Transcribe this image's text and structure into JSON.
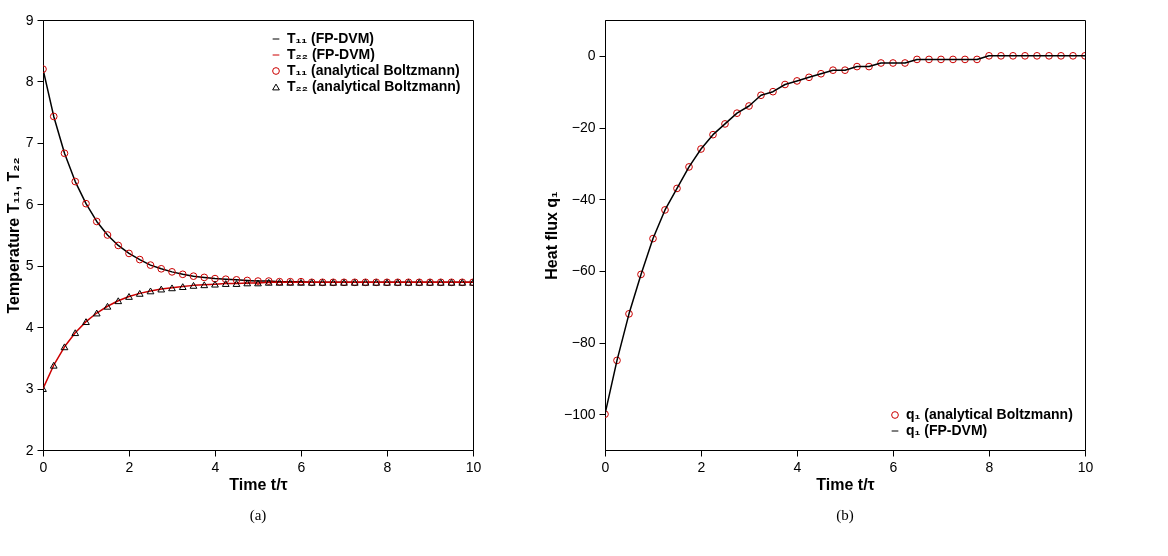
{
  "chart_data": [
    {
      "type": "line",
      "xlabel": "Time t/τ",
      "ylabel": "Temperature T₁₁, T₂₂",
      "xlim": [
        0,
        10
      ],
      "xticks": [
        0,
        2,
        4,
        6,
        8,
        10
      ],
      "ylim": [
        2,
        9
      ],
      "yticks": [
        2,
        3,
        4,
        5,
        6,
        7,
        8,
        9
      ],
      "grid": false,
      "legend": "top right",
      "annotations": [
        "(a)"
      ],
      "x": [
        0,
        0.25,
        0.5,
        0.75,
        1,
        1.25,
        1.5,
        1.75,
        2,
        2.25,
        2.5,
        2.75,
        3,
        3.25,
        3.5,
        3.75,
        4,
        4.25,
        4.5,
        4.75,
        5,
        5.25,
        5.5,
        5.75,
        6,
        6.25,
        6.5,
        6.75,
        7,
        7.25,
        7.5,
        7.75,
        8,
        8.25,
        8.5,
        8.75,
        9,
        9.25,
        9.5,
        9.75,
        10
      ],
      "series": [
        {
          "name": "T₁₁ (FP-DVM)",
          "color": "#000000",
          "line_style": "solid",
          "values": [
            8.2,
            7.43,
            6.83,
            6.37,
            6.01,
            5.72,
            5.5,
            5.33,
            5.2,
            5.1,
            5.01,
            4.95,
            4.9,
            4.86,
            4.83,
            4.81,
            4.79,
            4.78,
            4.77,
            4.76,
            4.75,
            4.75,
            4.74,
            4.74,
            4.74,
            4.73,
            4.73,
            4.73,
            4.73,
            4.73,
            4.73,
            4.73,
            4.73,
            4.73,
            4.73,
            4.73,
            4.73,
            4.73,
            4.73,
            4.73,
            4.73
          ]
        },
        {
          "name": "T₂₂ (FP-DVM)",
          "color": "#cc0000",
          "line_style": "solid",
          "values": [
            3.0,
            3.38,
            3.68,
            3.91,
            4.09,
            4.23,
            4.34,
            4.43,
            4.5,
            4.55,
            4.59,
            4.62,
            4.64,
            4.66,
            4.68,
            4.69,
            4.7,
            4.71,
            4.71,
            4.72,
            4.72,
            4.73,
            4.73,
            4.73,
            4.73,
            4.73,
            4.73,
            4.73,
            4.73,
            4.73,
            4.73,
            4.73,
            4.73,
            4.73,
            4.73,
            4.73,
            4.73,
            4.73,
            4.73,
            4.73,
            4.73
          ]
        },
        {
          "name": "T₁₁ (analytical Boltzmann)",
          "type": "scatter",
          "marker": "circle",
          "color": "#cc0000",
          "values": [
            8.2,
            7.43,
            6.83,
            6.37,
            6.01,
            5.72,
            5.5,
            5.33,
            5.2,
            5.1,
            5.01,
            4.95,
            4.9,
            4.86,
            4.83,
            4.81,
            4.79,
            4.78,
            4.77,
            4.76,
            4.75,
            4.75,
            4.74,
            4.74,
            4.74,
            4.73,
            4.73,
            4.73,
            4.73,
            4.73,
            4.73,
            4.73,
            4.73,
            4.73,
            4.73,
            4.73,
            4.73,
            4.73,
            4.73,
            4.73,
            4.73
          ]
        },
        {
          "name": "T₂₂ (analytical Boltzmann)",
          "type": "scatter",
          "marker": "triangle",
          "color": "#000000",
          "values": [
            3.0,
            3.38,
            3.68,
            3.91,
            4.09,
            4.23,
            4.34,
            4.43,
            4.5,
            4.55,
            4.59,
            4.62,
            4.64,
            4.66,
            4.68,
            4.69,
            4.7,
            4.71,
            4.71,
            4.72,
            4.72,
            4.73,
            4.73,
            4.73,
            4.73,
            4.73,
            4.73,
            4.73,
            4.73,
            4.73,
            4.73,
            4.73,
            4.73,
            4.73,
            4.73,
            4.73,
            4.73,
            4.73,
            4.73,
            4.73,
            4.73
          ]
        }
      ]
    },
    {
      "type": "line",
      "xlabel": "Time t/τ",
      "ylabel": "Heat flux q₁",
      "xlim": [
        0,
        10
      ],
      "xticks": [
        0,
        2,
        4,
        6,
        8,
        10
      ],
      "ylim": [
        -110,
        10
      ],
      "yticks": [
        -100,
        -80,
        -60,
        -40,
        -20,
        0
      ],
      "grid": false,
      "legend": "bottom right",
      "annotations": [
        "(b)"
      ],
      "x": [
        0,
        0.25,
        0.5,
        0.75,
        1,
        1.25,
        1.5,
        1.75,
        2,
        2.25,
        2.5,
        2.75,
        3,
        3.25,
        3.5,
        3.75,
        4,
        4.25,
        4.5,
        4.75,
        5,
        5.25,
        5.5,
        5.75,
        6,
        6.25,
        6.5,
        6.75,
        7,
        7.25,
        7.5,
        7.75,
        8,
        8.25,
        8.5,
        8.75,
        9,
        9.25,
        9.5,
        9.75,
        10
      ],
      "series": [
        {
          "name": "q₁ (analytical Boltzmann)",
          "type": "scatter",
          "marker": "circle",
          "color": "#cc0000",
          "values": [
            -100,
            -85,
            -72,
            -61,
            -51,
            -43,
            -37,
            -31,
            -26,
            -22,
            -19,
            -16,
            -14,
            -11,
            -10,
            -8,
            -7,
            -6,
            -5,
            -4,
            -4,
            -3,
            -3,
            -2,
            -2,
            -2,
            -1,
            -1,
            -1,
            -1,
            -1,
            -1,
            0,
            0,
            0,
            0,
            0,
            0,
            0,
            0,
            0
          ]
        },
        {
          "name": "q₁ (FP-DVM)",
          "color": "#000000",
          "line_style": "solid",
          "values": [
            -100,
            -85,
            -72,
            -61,
            -51,
            -43,
            -37,
            -31,
            -26,
            -22,
            -19,
            -16,
            -14,
            -11,
            -10,
            -8,
            -7,
            -6,
            -5,
            -4,
            -4,
            -3,
            -3,
            -2,
            -2,
            -2,
            -1,
            -1,
            -1,
            -1,
            -1,
            -1,
            0,
            0,
            0,
            0,
            0,
            0,
            0,
            0,
            0
          ]
        }
      ]
    }
  ]
}
